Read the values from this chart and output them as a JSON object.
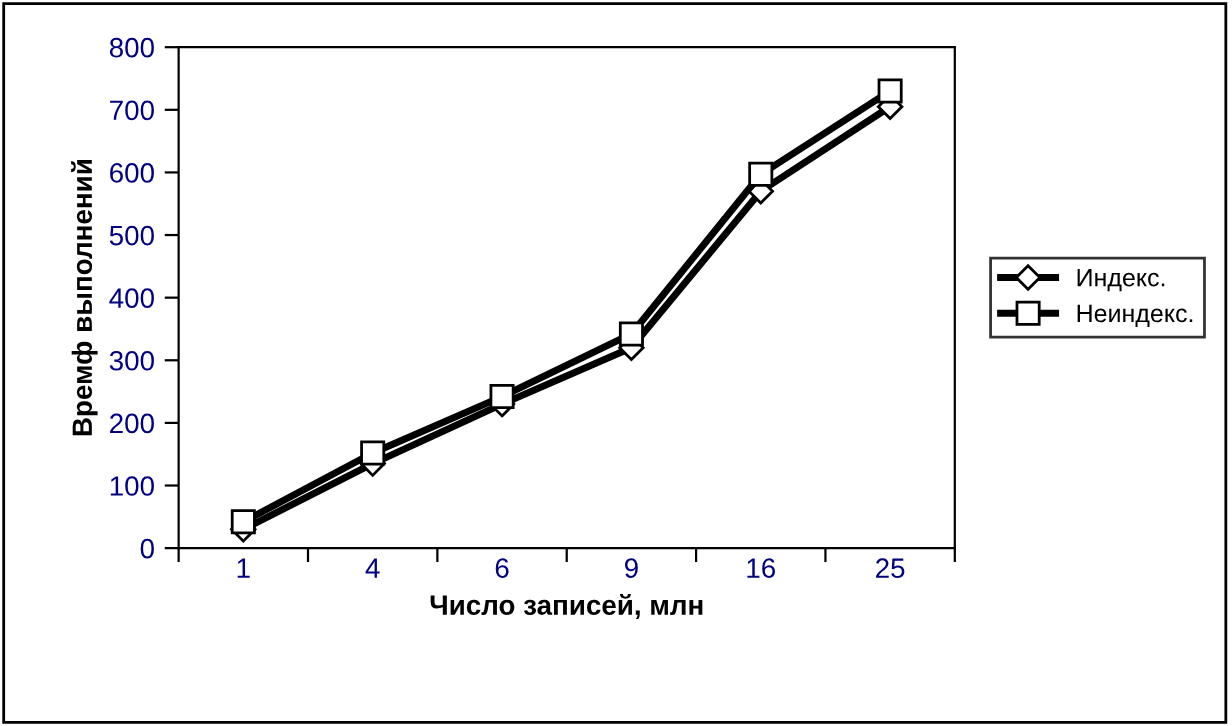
{
  "chart_data": {
    "type": "line",
    "xlabel": "Число записей, млн",
    "ylabel": "Времф выполнений",
    "categories": [
      "1",
      "4",
      "6",
      "9",
      "16",
      "25"
    ],
    "series": [
      {
        "name": "Индекс.",
        "color": "#000000",
        "marker": "diamond",
        "values": [
          30,
          135,
          230,
          320,
          570,
          705
        ]
      },
      {
        "name": "Неиндекс.",
        "color": "#000000",
        "marker": "square",
        "values": [
          42,
          152,
          242,
          342,
          597,
          730
        ]
      }
    ],
    "ylim": [
      0,
      800
    ],
    "yticks": [
      0,
      100,
      200,
      300,
      400,
      500,
      600,
      700,
      800
    ],
    "grid": false,
    "legend": "right",
    "line_style": "solid"
  }
}
